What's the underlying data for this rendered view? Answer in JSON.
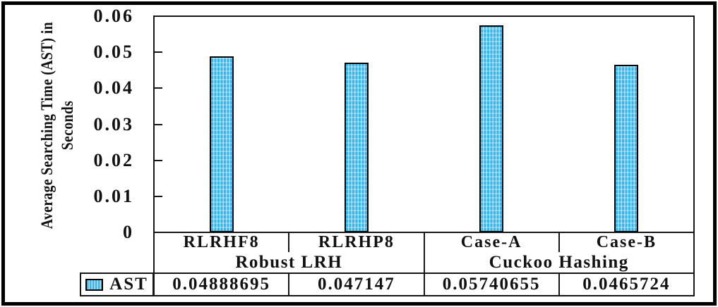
{
  "chart_data": {
    "type": "bar",
    "title": "",
    "y_axis_title_lines": [
      "Average Searching Time (AST) in",
      "Seconds"
    ],
    "ylabel": "Average Searching Time (AST) in Seconds",
    "ylim": [
      0,
      0.06
    ],
    "ytick_labels": [
      "0.06",
      "0.05",
      "0.04",
      "0.03",
      "0.02",
      "0.01",
      "0"
    ],
    "grid": false,
    "legend_position": "bottom-left-table",
    "categories": [
      "RLRHF8",
      "RLRHP8",
      "Case-A",
      "Case-B"
    ],
    "category_groups": [
      {
        "label": "Robust LRH",
        "categories": [
          "RLRHF8",
          "RLRHP8"
        ]
      },
      {
        "label": "Cuckoo Hashing",
        "categories": [
          "Case-A",
          "Case-B"
        ]
      }
    ],
    "series": [
      {
        "name": "AST",
        "values": [
          0.04888695,
          0.047147,
          0.05740655,
          0.0465724
        ],
        "value_labels": [
          "0.04888695",
          "0.047147",
          "0.05740655",
          "0.0465724"
        ]
      }
    ],
    "bar_fill_color": "#36B5EC",
    "bar_stripe_color": "#8FDCF8",
    "bar_border_color": "#000000",
    "axis_color": "#161616"
  }
}
